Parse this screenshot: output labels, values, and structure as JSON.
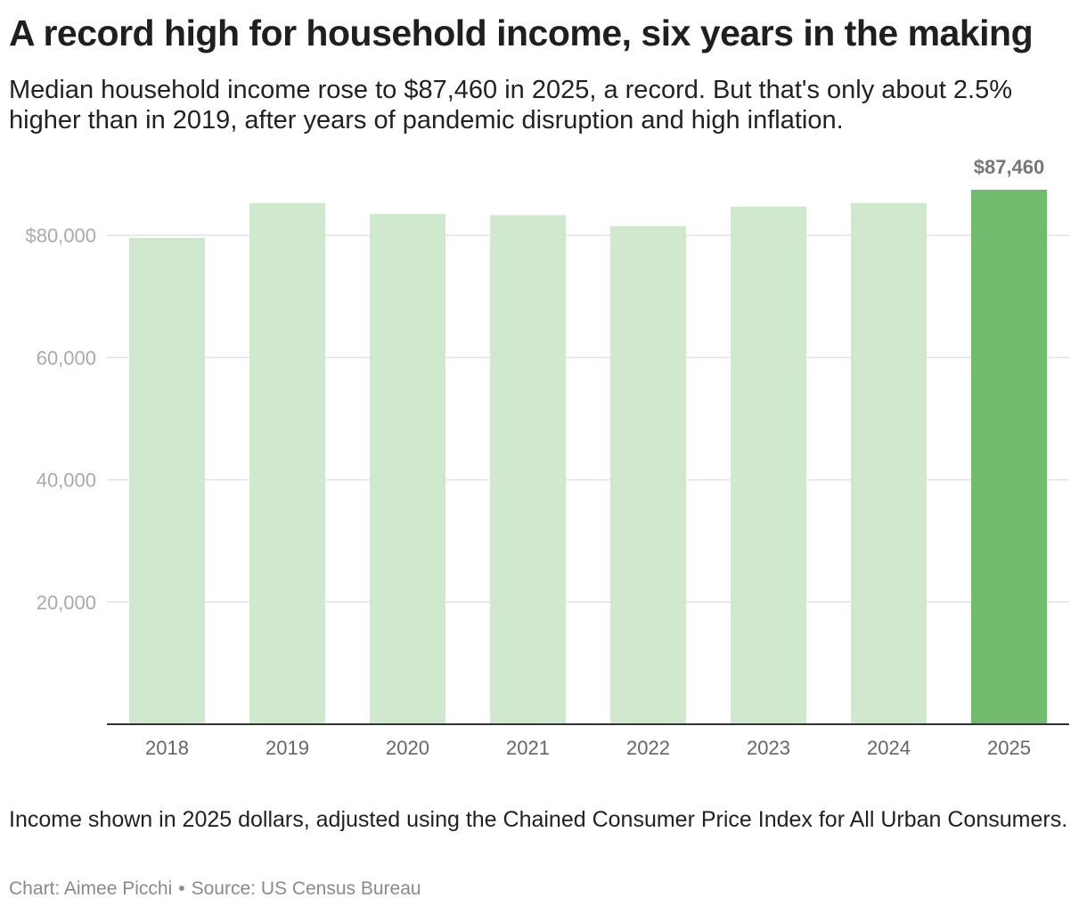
{
  "title": "A record high for household income, six years in the making",
  "subtitle": "Median household income rose to $87,460 in 2025, a record. But that's only about 2.5% higher than in 2019, after years of pandemic disruption and high inflation.",
  "note": "Income shown in 2025 dollars, adjusted using the Chained Consumer Price Index for All Urban Consumers.",
  "credit": {
    "chart_by": "Chart: Aimee Picchi",
    "separator": "•",
    "source": "Source: US Census Bureau"
  },
  "colors": {
    "bar": "#cfe8ce",
    "highlight": "#70bb6e",
    "grid": "#e3e3e3",
    "axis": "#333333",
    "tick_text": "#aaaaaa",
    "xtick_text": "#666666",
    "label_text": "#777777"
  },
  "chart_data": {
    "type": "bar",
    "categories": [
      "2018",
      "2019",
      "2020",
      "2021",
      "2022",
      "2023",
      "2024",
      "2025"
    ],
    "values": [
      79600,
      85300,
      83500,
      83300,
      81500,
      84700,
      85300,
      87460
    ],
    "highlight_index": 7,
    "data_labels": [
      {
        "index": 7,
        "text": "$87,460"
      }
    ],
    "ylim": [
      0,
      87460
    ],
    "yticks": [
      {
        "value": 20000,
        "label": "20,000"
      },
      {
        "value": 40000,
        "label": "40,000"
      },
      {
        "value": 60000,
        "label": "60,000"
      },
      {
        "value": 80000,
        "label": "$80,000"
      }
    ],
    "xlabel": "",
    "ylabel": "",
    "grid": true,
    "legend": "none"
  }
}
